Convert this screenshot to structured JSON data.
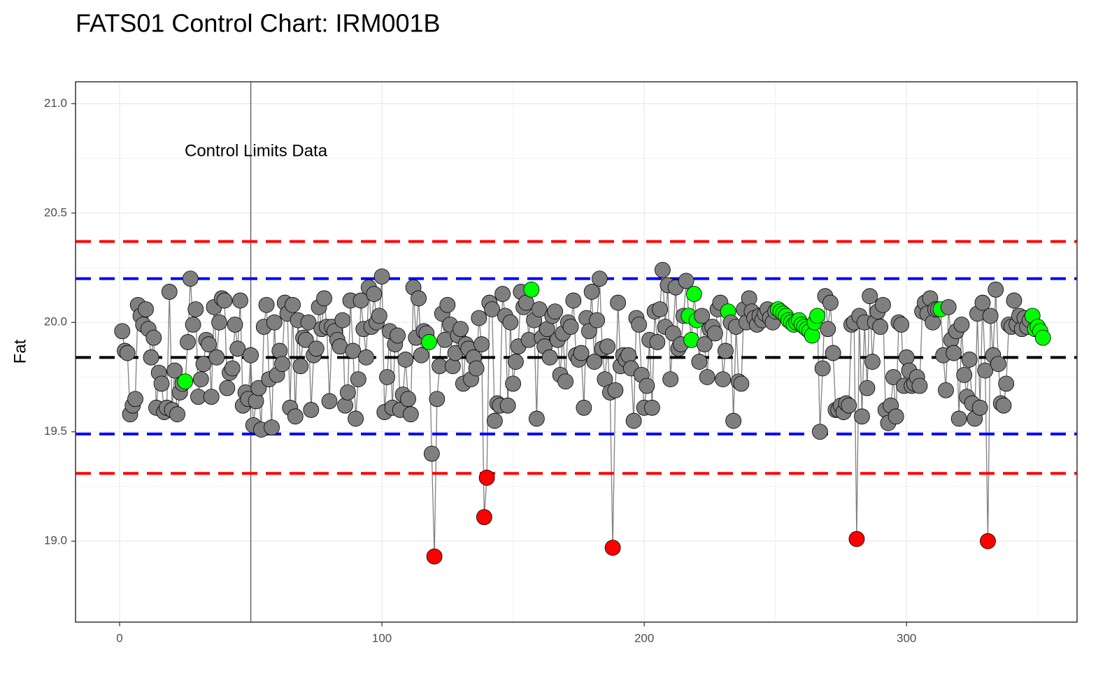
{
  "chart_data": {
    "type": "scatter",
    "title": "FATS01  Control Chart:  IRM001B",
    "y_label": "Fat",
    "annotation": {
      "text": "Control Limits Data",
      "x": 52,
      "y": 20.78
    },
    "vline": {
      "x": 50,
      "color": "#666666"
    },
    "hlines": [
      {
        "y": 20.37,
        "color": "#ff0000"
      },
      {
        "y": 20.2,
        "color": "#0000ff"
      },
      {
        "y": 19.84,
        "color": "#000000"
      },
      {
        "y": 19.49,
        "color": "#0000ff"
      },
      {
        "y": 19.31,
        "color": "#ff0000"
      }
    ],
    "xlim": [
      -16.8,
      365
    ],
    "ylim": [
      18.63,
      21.1
    ],
    "xticks": [
      0,
      100,
      200,
      300
    ],
    "yticks": [
      {
        "value": 19,
        "label": "19.0"
      },
      {
        "value": 19.5,
        "label": "19.5"
      },
      {
        "value": 20,
        "label": "20.0"
      },
      {
        "value": 20.5,
        "label": "20.5"
      },
      {
        "value": 21,
        "label": "21.0"
      }
    ],
    "grid": true,
    "series": [
      {
        "color": "#7f7f7f",
        "line_color": "#808080",
        "x": [
          1,
          2,
          3,
          4,
          5,
          6,
          7,
          8,
          9,
          10,
          11,
          12,
          13,
          14,
          15,
          16,
          17,
          18,
          19,
          20,
          21,
          22,
          23,
          24,
          25,
          26,
          27,
          28,
          29,
          30,
          31,
          32,
          33,
          34,
          35,
          36,
          37,
          38,
          39,
          40,
          41,
          42,
          43,
          44,
          45,
          46,
          47,
          48,
          49,
          50,
          51,
          52,
          53,
          54,
          55,
          56,
          57,
          58,
          59,
          60,
          61,
          62,
          63,
          64,
          65,
          66,
          67,
          68,
          69,
          70,
          71,
          72,
          73,
          74,
          75,
          76,
          77,
          78,
          79,
          80,
          81,
          82,
          83,
          84,
          85,
          86,
          87,
          88,
          89,
          90,
          91,
          92,
          93,
          94,
          95,
          96,
          97,
          98,
          99,
          100,
          101,
          102,
          103,
          104,
          105,
          106,
          107,
          108,
          109,
          110,
          111,
          112,
          113,
          114,
          115,
          116,
          117,
          118,
          119,
          120,
          121,
          122,
          123,
          124,
          125,
          126,
          127,
          128,
          129,
          130,
          131,
          132,
          133,
          134,
          135,
          136,
          137,
          138,
          139,
          140,
          141,
          142,
          143,
          144,
          145,
          146,
          147,
          148,
          149,
          150,
          151,
          152,
          153,
          154,
          155,
          156,
          157,
          158,
          159,
          160,
          161,
          162,
          163,
          164,
          165,
          166,
          167,
          168,
          169,
          170,
          171,
          172,
          173,
          174,
          175,
          176,
          177,
          178,
          179,
          180,
          181,
          182,
          183,
          184,
          185,
          186,
          187,
          188,
          189,
          190,
          191,
          192,
          193,
          194,
          195,
          196,
          197,
          198,
          199,
          200,
          201,
          202,
          203,
          204,
          205,
          206,
          207,
          208,
          209,
          210,
          211,
          212,
          213,
          214,
          215,
          216,
          217,
          218,
          219,
          220,
          221,
          222,
          223,
          224,
          225,
          226,
          227,
          228,
          229,
          230,
          231,
          232,
          233,
          234,
          235,
          236,
          237,
          238,
          239,
          240,
          241,
          242,
          243,
          244,
          245,
          246,
          247,
          248,
          249,
          250,
          251,
          252,
          253,
          254,
          255,
          256,
          257,
          258,
          259,
          260,
          261,
          262,
          263,
          264,
          265,
          266,
          267,
          268,
          269,
          270,
          271,
          272,
          273,
          274,
          275,
          276,
          277,
          278,
          279,
          280,
          281,
          282,
          283,
          284,
          285,
          286,
          287,
          288,
          289,
          290,
          291,
          292,
          293,
          294,
          295,
          296,
          297,
          298,
          299,
          300,
          301,
          302,
          303,
          304,
          305,
          306,
          307,
          308,
          309,
          310,
          311,
          312,
          313,
          314,
          315,
          316,
          317,
          318,
          319,
          320,
          321,
          322,
          323,
          324,
          325,
          326,
          327,
          328,
          329,
          330,
          331,
          332,
          333,
          334,
          335,
          336,
          337,
          338,
          339,
          340,
          341,
          342,
          343,
          344,
          345,
          346,
          347,
          348,
          349,
          350,
          351,
          352
        ],
        "values": [
          19.96,
          19.87,
          19.86,
          19.58,
          19.62,
          19.65,
          20.08,
          20.03,
          19.99,
          20.06,
          19.97,
          19.84,
          19.93,
          19.61,
          19.77,
          19.72,
          19.59,
          19.61,
          20.14,
          19.6,
          19.78,
          19.58,
          19.68,
          19.72,
          19.73,
          19.91,
          20.2,
          19.99,
          20.06,
          19.66,
          19.74,
          19.81,
          19.92,
          19.9,
          19.66,
          20.07,
          19.84,
          20.0,
          20.11,
          20.1,
          19.7,
          19.77,
          19.79,
          19.99,
          19.88,
          20.1,
          19.62,
          19.68,
          19.65,
          19.85,
          19.53,
          19.64,
          19.7,
          19.51,
          19.98,
          20.08,
          19.74,
          19.52,
          20.0,
          19.76,
          19.87,
          19.81,
          20.09,
          20.04,
          19.61,
          20.08,
          19.57,
          20.01,
          19.8,
          19.93,
          19.92,
          20.0,
          19.6,
          19.85,
          19.88,
          20.07,
          19.97,
          20.11,
          19.98,
          19.64,
          19.98,
          19.96,
          19.92,
          19.89,
          20.01,
          19.62,
          19.68,
          20.1,
          19.87,
          19.56,
          19.74,
          20.1,
          19.97,
          19.84,
          20.16,
          19.98,
          20.13,
          20.0,
          20.03,
          20.21,
          19.59,
          19.75,
          19.96,
          19.61,
          19.9,
          19.94,
          19.6,
          19.67,
          19.83,
          19.65,
          19.58,
          20.16,
          19.93,
          20.11,
          19.85,
          19.96,
          19.95,
          19.91,
          19.4,
          18.93,
          19.65,
          19.8,
          20.04,
          19.92,
          20.08,
          19.99,
          19.8,
          19.86,
          19.94,
          19.97,
          19.72,
          19.9,
          19.88,
          19.74,
          19.84,
          19.79,
          20.02,
          19.9,
          19.11,
          19.29,
          20.09,
          20.06,
          19.55,
          19.63,
          19.62,
          20.13,
          20.03,
          19.62,
          20.0,
          19.72,
          19.82,
          19.89,
          20.14,
          20.07,
          20.09,
          19.92,
          20.15,
          20.01,
          19.56,
          20.06,
          19.93,
          19.89,
          19.97,
          19.84,
          20.03,
          20.05,
          19.92,
          19.76,
          19.95,
          19.73,
          20.0,
          19.98,
          20.1,
          19.85,
          19.83,
          19.86,
          19.61,
          20.02,
          19.96,
          20.14,
          19.82,
          20.01,
          20.2,
          19.88,
          19.74,
          19.89,
          19.68,
          18.97,
          19.69,
          20.09,
          19.8,
          19.85,
          19.83,
          19.85,
          19.79,
          19.55,
          20.02,
          19.99,
          19.76,
          19.61,
          19.71,
          19.92,
          19.61,
          20.05,
          19.91,
          20.06,
          20.24,
          19.98,
          20.17,
          19.74,
          19.95,
          20.16,
          19.88,
          19.9,
          20.03,
          20.19,
          20.03,
          19.92,
          20.13,
          20.01,
          19.82,
          20.03,
          19.9,
          19.75,
          19.97,
          19.98,
          19.95,
          20.06,
          20.09,
          19.74,
          19.87,
          20.05,
          20.0,
          19.55,
          19.98,
          19.73,
          19.72,
          20.06,
          20.0,
          20.11,
          20.05,
          20.02,
          19.99,
          20.03,
          20.01,
          20.04,
          20.06,
          20.02,
          20.0,
          20.05,
          20.06,
          20.05,
          20.04,
          20.03,
          20.01,
          20.0,
          19.99,
          20.0,
          20.01,
          19.99,
          19.98,
          19.97,
          19.96,
          19.94,
          20.0,
          20.03,
          19.5,
          19.79,
          20.12,
          19.97,
          20.09,
          19.86,
          19.6,
          19.6,
          19.62,
          19.59,
          19.63,
          19.62,
          19.99,
          20.0,
          19.01,
          20.03,
          19.57,
          20.0,
          19.7,
          20.12,
          19.82,
          20.0,
          20.05,
          19.98,
          20.08,
          19.6,
          19.54,
          19.62,
          19.75,
          19.57,
          20.0,
          19.99,
          19.71,
          19.84,
          19.78,
          19.71,
          19.72,
          19.75,
          19.71,
          20.05,
          20.09,
          20.04,
          20.11,
          20.0,
          20.06,
          20.06,
          20.06,
          19.85,
          19.69,
          20.07,
          19.92,
          19.86,
          19.96,
          19.56,
          19.99,
          19.76,
          19.66,
          19.83,
          19.63,
          19.56,
          20.04,
          19.61,
          20.09,
          19.78,
          19.0,
          20.03,
          19.85,
          20.15,
          19.81,
          19.63,
          19.62,
          19.72,
          19.99,
          19.98,
          20.1,
          19.99,
          20.03,
          19.97,
          20.02,
          19.98,
          20.01,
          20.03,
          19.97,
          19.98,
          19.96,
          19.93
        ]
      }
    ],
    "highlights": [
      {
        "color": "#00ff00",
        "x": [
          25,
          118,
          157,
          217,
          218,
          219,
          220,
          232,
          251,
          252,
          253,
          254,
          255,
          256,
          257,
          258,
          259,
          260,
          261,
          262,
          263,
          264,
          265,
          266,
          313,
          348,
          349,
          350,
          351,
          352
        ]
      },
      {
        "color": "#ff0000",
        "x": [
          120,
          139,
          140,
          188,
          281,
          331
        ]
      }
    ]
  }
}
